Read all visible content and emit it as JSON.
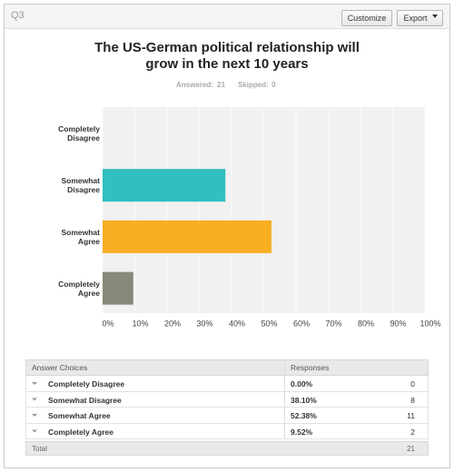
{
  "header": {
    "question": "Q3",
    "buttons": [
      "Customize",
      "Export"
    ]
  },
  "chart_data": {
    "type": "bar",
    "orientation": "horizontal",
    "title": "The US-German political relationship will grow in the next 10 years",
    "stats": [
      {
        "label": "Answered:",
        "value": 21
      },
      {
        "label": "Skipped:",
        "value": 0
      }
    ],
    "categories": [
      "Completely Disagree",
      "Somewhat Disagree",
      "Somewhat Agree",
      "Completely Agree"
    ],
    "values": [
      0,
      38.1,
      52.38,
      9.52
    ],
    "colors": [
      "#4f8fd6",
      "#32bfbf",
      "#f8ae22",
      "#878a79"
    ],
    "xlim": [
      0,
      100
    ],
    "xticks": [
      {
        "value": 0,
        "label": "0%"
      },
      {
        "value": 10,
        "label": "10%"
      },
      {
        "value": 20,
        "label": "20%"
      },
      {
        "value": 30,
        "label": "30%"
      },
      {
        "value": 40,
        "label": "40%"
      },
      {
        "value": 50,
        "label": "50%"
      },
      {
        "value": 60,
        "label": "60%"
      },
      {
        "value": 70,
        "label": "70%"
      },
      {
        "value": 80,
        "label": "80%"
      },
      {
        "value": 90,
        "label": "90%"
      },
      {
        "value": 100,
        "label": "100%"
      }
    ],
    "grid": true
  },
  "table": {
    "columns": [
      "Answer Choices",
      "Responses"
    ],
    "rows": [
      [
        "Completely Disagree",
        "0.00%",
        0
      ],
      [
        "Somewhat Disagree",
        "38.10%",
        8
      ],
      [
        "Somewhat Agree",
        "52.38%",
        11
      ],
      [
        "Completely Agree",
        "9.52%",
        2
      ]
    ],
    "total": {
      "label": "Total",
      "value": 21
    }
  }
}
